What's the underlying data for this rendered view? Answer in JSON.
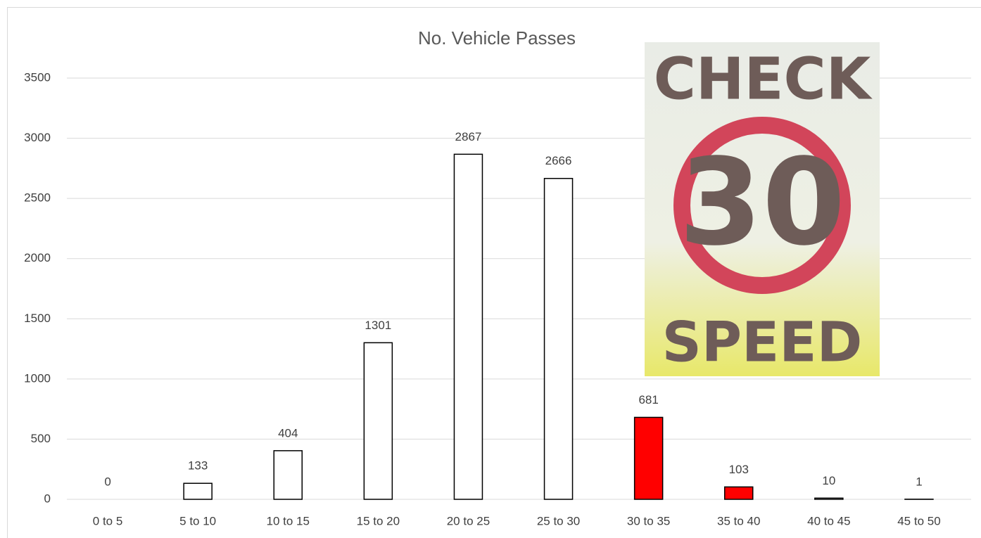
{
  "chart_data": {
    "type": "bar",
    "title": "No. Vehicle Passes",
    "categories": [
      "0 to 5",
      "5 to 10",
      "10 to 15",
      "15 to 20",
      "20 to 25",
      "25 to 30",
      "30 to 35",
      "35 to 40",
      "40 to 45",
      "45 to 50"
    ],
    "values": [
      0,
      133,
      404,
      1301,
      2867,
      2666,
      681,
      103,
      10,
      1
    ],
    "colors": [
      "#ffffff",
      "#ffffff",
      "#ffffff",
      "#ffffff",
      "#ffffff",
      "#ffffff",
      "#ff0000",
      "#ff0000",
      "#ffffff",
      "#ffffff"
    ],
    "ylim": [
      0,
      3500
    ],
    "yticks": [
      0,
      500,
      1000,
      1500,
      2000,
      2500,
      3000,
      3500
    ],
    "grid": true,
    "sign": {
      "top": "CHECK",
      "number": "30",
      "bottom": "SPEED"
    }
  }
}
